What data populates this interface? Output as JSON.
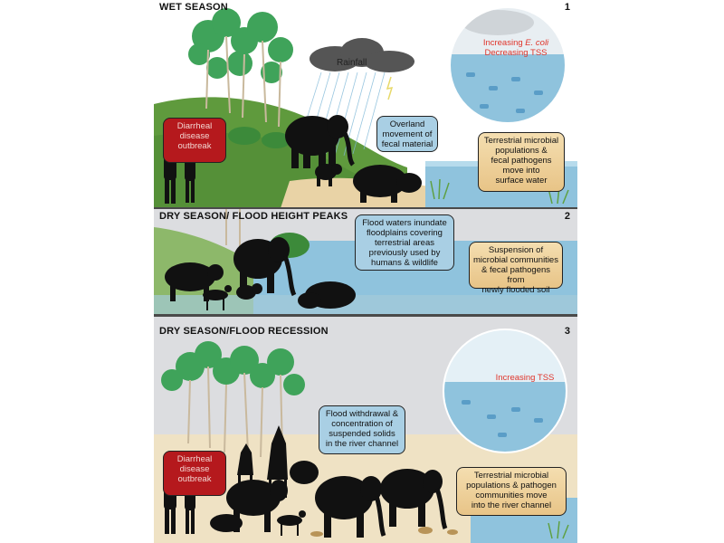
{
  "panels": [
    {
      "title": "WET SEASON",
      "number": "1",
      "rainfall_label": "Rainfall",
      "circle_label_1a": "Increasing ",
      "circle_label_1b": "E. coli",
      "circle_label_2": "Decreasing TSS",
      "boxes": {
        "diarrheal": [
          "Diarrheal",
          "disease",
          "outbreak"
        ],
        "overland": [
          "Overland",
          "movement of",
          "fecal material"
        ],
        "terrestrial": [
          "Terrestrial microbial",
          "populations &",
          "fecal pathogens",
          "move into",
          "surface water"
        ]
      }
    },
    {
      "title": "DRY SEASON/ FLOOD HEIGHT PEAKS",
      "number": "2",
      "boxes": {
        "inundate": [
          "Flood waters inundate",
          "floodplains covering",
          "terrestrial areas",
          "previously used by",
          "humans & wildlife"
        ],
        "suspension": [
          "Suspension of",
          "microbial communities",
          "& fecal pathogens from",
          "newly flooded soil"
        ]
      }
    },
    {
      "title": "DRY SEASON/FLOOD RECESSION",
      "number": "3",
      "circle_label": "Increasing TSS",
      "boxes": {
        "withdrawal": [
          "Flood withdrawal &",
          "concentration of",
          "suspended solids",
          "in the river channel"
        ],
        "diarrheal": [
          "Diarrheal",
          "disease",
          "outbreak"
        ],
        "terrestrial": [
          "Terrestrial microbial",
          "populations & pathogen",
          "communities move",
          "into the river channel"
        ]
      }
    }
  ],
  "colors": {
    "water": "#8fc3dd",
    "grass": "#5f9a3d",
    "sand": "#e9d3a6",
    "tree_green": "#3fa35a",
    "silhouette": "#111111",
    "accent_red": "#e0352b"
  }
}
